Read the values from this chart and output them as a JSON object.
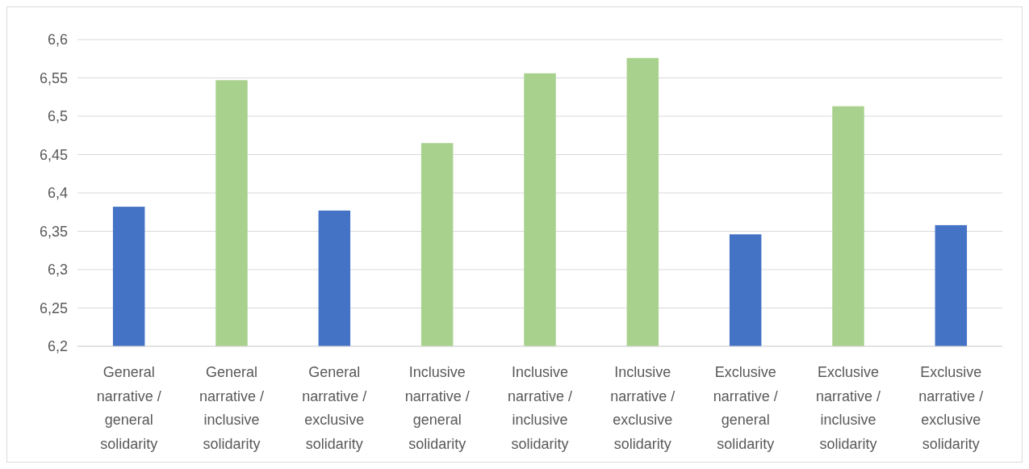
{
  "chart_data": {
    "type": "bar",
    "categories": [
      "General narrative / general solidarity",
      "General narrative / inclusive solidarity",
      "General narrative / exclusive solidarity",
      "Inclusive narrative / general solidarity",
      "Inclusive narrative / inclusive solidarity",
      "Inclusive narrative / exclusive solidarity",
      "Exclusive narrative / general solidarity",
      "Exclusive narrative / inclusive solidarity",
      "Exclusive narrative / exclusive solidarity"
    ],
    "values": [
      6.382,
      6.547,
      6.377,
      6.465,
      6.556,
      6.576,
      6.346,
      6.513,
      6.358
    ],
    "colors": [
      "#4472c4",
      "#a9d18e",
      "#4472c4",
      "#a9d18e",
      "#a9d18e",
      "#a9d18e",
      "#4472c4",
      "#a9d18e",
      "#4472c4"
    ],
    "ylim": [
      6.2,
      6.6
    ],
    "yticks": [
      {
        "value": 6.2,
        "label": "6,2"
      },
      {
        "value": 6.25,
        "label": "6,25"
      },
      {
        "value": 6.3,
        "label": "6,3"
      },
      {
        "value": 6.35,
        "label": "6,35"
      },
      {
        "value": 6.4,
        "label": "6,4"
      },
      {
        "value": 6.45,
        "label": "6,45"
      },
      {
        "value": 6.5,
        "label": "6,5"
      },
      {
        "value": 6.55,
        "label": "6,55"
      },
      {
        "value": 6.6,
        "label": "6,6"
      }
    ],
    "grid": "y"
  }
}
